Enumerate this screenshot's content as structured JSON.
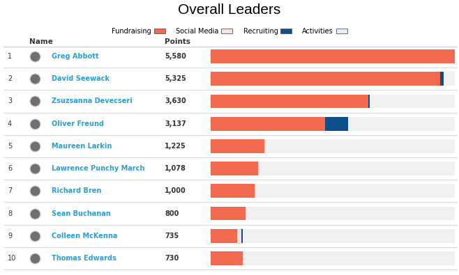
{
  "chart_data": {
    "type": "bar",
    "orientation": "horizontal",
    "stacked": true,
    "title": "Overall Leaders",
    "legend": "upper center",
    "tick_labels": false,
    "columns": [
      "Name",
      "Points"
    ],
    "ranks": [
      1,
      2,
      3,
      4,
      5,
      6,
      7,
      8,
      9,
      10
    ],
    "categories": [
      "Greg Abbott",
      "David Seewack",
      "Zsuzsanna Devecseri",
      "Oliver Freund",
      "Maureen Larkin",
      "Lawrence Punchy March",
      "Richard Bren",
      "Sean Buchanan",
      "Colleen McKenna",
      "Thomas Edwards"
    ],
    "points": [
      "5,580",
      "5,325",
      "3,630",
      "3,137",
      "1,225",
      "1,078",
      "1,000",
      "800",
      "735",
      "730"
    ],
    "series": [
      {
        "name": "Fundraising",
        "color": "#f26a4f",
        "values": [
          5580,
          5250,
          3600,
          2612,
          1225,
          1078,
          1000,
          800,
          600,
          730
        ]
      },
      {
        "name": "Social Media",
        "color": "#fbe1df",
        "values": [
          0,
          0,
          0,
          0,
          0,
          0,
          0,
          0,
          105,
          0
        ]
      },
      {
        "name": "Recruiting",
        "color": "#0d4f8b",
        "values": [
          0,
          75,
          30,
          525,
          0,
          0,
          0,
          0,
          30,
          0
        ]
      },
      {
        "name": "Activities",
        "color": "#e6edf5",
        "values": [
          0,
          0,
          0,
          0,
          0,
          0,
          0,
          0,
          0,
          0
        ]
      }
    ],
    "xlim": [
      0,
      5580
    ]
  }
}
